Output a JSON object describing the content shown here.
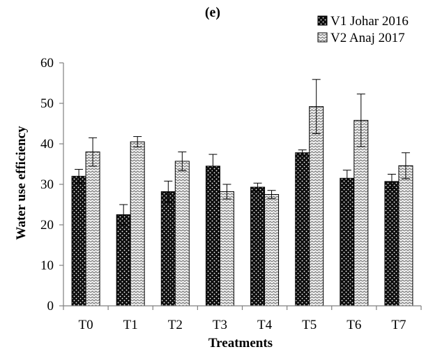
{
  "chart_data": {
    "type": "bar",
    "title": "(e)",
    "xlabel": "Treatments",
    "ylabel": "Water use efficiency",
    "categories": [
      "T0",
      "T1",
      "T2",
      "T3",
      "T4",
      "T5",
      "T6",
      "T7"
    ],
    "ylim": [
      0,
      60
    ],
    "yticks": [
      0,
      10,
      20,
      30,
      40,
      50,
      60
    ],
    "grid": false,
    "legend_position": "top-right",
    "series": [
      {
        "name": "V1 Johar 2016",
        "pattern": "dotted-dark",
        "color": "#111111",
        "values": [
          32.0,
          22.5,
          28.2,
          34.5,
          29.3,
          37.8,
          31.5,
          30.7
        ],
        "errors": [
          1.7,
          2.5,
          2.6,
          2.9,
          1.0,
          0.7,
          2.0,
          1.8
        ]
      },
      {
        "name": "V2 Anaj 2017",
        "pattern": "wave-light",
        "color": "#aaaaaa",
        "values": [
          38.0,
          40.5,
          35.7,
          28.2,
          27.5,
          49.2,
          45.8,
          34.6
        ],
        "errors": [
          3.5,
          1.3,
          2.3,
          1.8,
          1.0,
          6.7,
          6.5,
          3.2
        ]
      }
    ]
  }
}
